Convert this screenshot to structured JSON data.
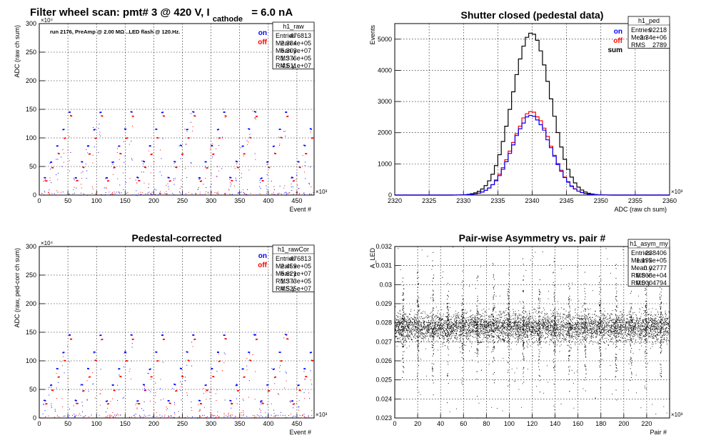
{
  "main_title": {
    "prefix": "Filter wheel scan: pmt#   3 @   420 V, I",
    "subscript": "cathode",
    "suffix": "= 6.0 nA"
  },
  "run_info": "run 2176, PreAmp @ 2.00 MΩ ..LED flash @  120.Hz.",
  "legend_labels": {
    "on": "on",
    "off": "off",
    "sum": "sum"
  },
  "colors": {
    "on": "#0000ff",
    "off": "#ff0000",
    "sum": "#000000",
    "grid": "#000000"
  },
  "chart_data": [
    {
      "id": "raw",
      "type": "scatter",
      "title": "",
      "xlabel": "Event #",
      "ylabel": "ADC (raw ch sum)",
      "xlim": [
        0,
        480000
      ],
      "ylim": [
        0,
        3000000
      ],
      "x_ticks": [
        "0",
        "50",
        "100",
        "150",
        "200",
        "250",
        "300",
        "350",
        "400",
        "450"
      ],
      "x_exponent": "×10³",
      "y_ticks": [
        "0",
        "50",
        "100",
        "150",
        "200",
        "250",
        "300"
      ],
      "y_exponent": "×10⁴",
      "grid": true,
      "legend": [
        "on",
        "off"
      ],
      "series": [
        {
          "name": "on",
          "levels": [
            0,
            300000,
            580000,
            860000,
            1150000,
            1450000
          ]
        },
        {
          "name": "off",
          "levels": [
            0,
            250000,
            480000,
            720000,
            1000000,
            1380000
          ]
        }
      ],
      "stats": {
        "name": "h1_raw",
        "rows": [
          {
            "label": "Entries",
            "value": "476813"
          },
          {
            "label": "Mean x",
            "value": "2.384e+05"
          },
          {
            "label": "Mean y",
            "value": "5.303e+07"
          },
          {
            "label": "RMS x",
            "value": "1.376e+05"
          },
          {
            "label": "RMS y",
            "value": "4.611e+07"
          }
        ]
      }
    },
    {
      "id": "ped",
      "type": "line",
      "title": "Shutter closed (pedestal data)",
      "xlabel": "ADC (raw ch sum)",
      "ylabel": "Events",
      "xlim": [
        2320000,
        2360000
      ],
      "ylim": [
        0,
        5500
      ],
      "x_ticks": [
        "2320",
        "2325",
        "2330",
        "2335",
        "2340",
        "2345",
        "2350",
        "2355",
        "2360"
      ],
      "x_exponent": "×10³",
      "y_ticks": [
        "0",
        "1000",
        "2000",
        "3000",
        "4000",
        "5000"
      ],
      "grid": true,
      "legend": [
        "on",
        "off",
        "sum"
      ],
      "series": [
        {
          "name": "sum",
          "mean": 2339900,
          "sigma": 2789,
          "peak": 5200
        },
        {
          "name": "off",
          "mean": 2339900,
          "sigma": 2789,
          "peak": 2650
        },
        {
          "name": "on",
          "mean": 2339900,
          "sigma": 2789,
          "peak": 2550
        }
      ],
      "stats": {
        "name": "h1_ped",
        "rows": [
          {
            "label": "Entries",
            "value": "92218"
          },
          {
            "label": "Mean",
            "value": "2.34e+06"
          },
          {
            "label": "RMS",
            "value": "2789"
          }
        ]
      }
    },
    {
      "id": "rawCor",
      "type": "scatter",
      "title": "Pedestal-corrected",
      "xlabel": "Event #",
      "ylabel": "ADC (raw, ped-corr ch sum)",
      "xlim": [
        0,
        480000
      ],
      "ylim": [
        0,
        3000000
      ],
      "x_ticks": [
        "0",
        "50",
        "100",
        "150",
        "200",
        "250",
        "300",
        "350",
        "400",
        "450"
      ],
      "x_exponent": "×10³",
      "y_ticks": [
        "0",
        "50",
        "100",
        "150",
        "200",
        "250",
        "300"
      ],
      "y_exponent": "×10⁴",
      "grid": true,
      "legend": [
        "on",
        "off"
      ],
      "series": [
        {
          "name": "on",
          "levels": [
            0,
            300000,
            580000,
            860000,
            1150000,
            1450000
          ]
        },
        {
          "name": "off",
          "levels": [
            0,
            250000,
            480000,
            720000,
            1000000,
            1380000
          ]
        }
      ],
      "stats": {
        "name": "h1_rawCor",
        "rows": [
          {
            "label": "Entries",
            "value": "476813"
          },
          {
            "label": "Mean x",
            "value": "2.459e+05"
          },
          {
            "label": "Mean y",
            "value": "5.621e+07"
          },
          {
            "label": "RMS x",
            "value": "1.373e+05"
          },
          {
            "label": "RMS y",
            "value": "4.525e+07"
          }
        ]
      }
    },
    {
      "id": "asym",
      "type": "scatter",
      "title": "Pair-wise Asymmetry vs. pair #",
      "xlabel": "Pair #",
      "ylabel": "A_LED",
      "xlim": [
        0,
        240000
      ],
      "ylim": [
        0.023,
        0.032
      ],
      "x_ticks": [
        "0",
        "20",
        "40",
        "60",
        "80",
        "100",
        "120",
        "140",
        "160",
        "180",
        "200",
        "220"
      ],
      "x_exponent": "×10³",
      "y_ticks": [
        "0.023",
        "0.024",
        "0.025",
        "0.026",
        "0.027",
        "0.028",
        "0.029",
        "0.03",
        "0.031",
        "0.032"
      ],
      "grid": true,
      "band_center": 0.02777,
      "spike_pairs": [
        7000,
        20000,
        33000,
        46000,
        59000,
        72000,
        86000,
        99000,
        112000,
        126000,
        139000,
        152000,
        166000,
        179000,
        193000,
        206000,
        219000,
        232000
      ],
      "stats": {
        "name": "h1_asym_my",
        "rows": [
          {
            "label": "Entries",
            "value": "238406"
          },
          {
            "label": "Mean x",
            "value": "1.195e+05"
          },
          {
            "label": "Mean y",
            "value": "0.02777"
          },
          {
            "label": "RMS x",
            "value": "6.868e+04"
          },
          {
            "label": "RMS y",
            "value": "0.0004794"
          }
        ]
      }
    }
  ]
}
